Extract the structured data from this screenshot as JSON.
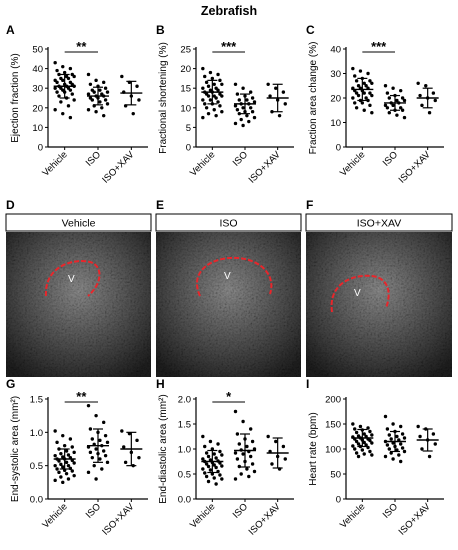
{
  "figure_title": "Zebrafish",
  "panel_letters": [
    "A",
    "B",
    "C",
    "D",
    "E",
    "F",
    "G",
    "H",
    "I"
  ],
  "ultrasound_panels": [
    {
      "letter": "D",
      "label": "Vehicle",
      "ventricle_label": "V"
    },
    {
      "letter": "E",
      "label": "ISO",
      "ventricle_label": "V"
    },
    {
      "letter": "F",
      "label": "ISO+XAV",
      "ventricle_label": "V"
    }
  ],
  "colors": {
    "axis": "#000000",
    "point": "#000000",
    "outline": "#e8262b",
    "background": "#ffffff"
  },
  "chart_data": [
    {
      "id": "A",
      "type": "scatter",
      "title": "",
      "xlabel": "",
      "ylabel": "Ejection fraction (%)",
      "ylim": [
        0,
        50
      ],
      "yticks": [
        "0",
        "10",
        "20",
        "30",
        "40",
        "50"
      ],
      "categories": [
        "Vehicle",
        "ISO",
        "ISO+XAV"
      ],
      "series": [
        {
          "values": [
            43,
            41,
            40,
            39,
            38,
            37,
            37,
            36,
            36,
            35,
            35,
            34,
            34,
            33,
            33,
            32,
            32,
            31,
            31,
            31,
            30,
            30,
            30,
            29,
            29,
            28,
            28,
            27,
            26,
            25,
            24,
            23,
            21,
            19,
            17,
            15
          ],
          "mean": 31,
          "sd": 6
        },
        {
          "values": [
            37,
            34,
            33,
            32,
            31,
            30,
            29,
            29,
            28,
            28,
            27,
            27,
            26,
            26,
            25,
            25,
            24,
            24,
            23,
            22,
            21,
            20,
            19,
            18,
            16
          ],
          "mean": 26,
          "sd": 4.5
        },
        {
          "values": [
            36,
            33,
            31,
            28,
            26,
            24,
            21,
            17
          ],
          "mean": 27.5,
          "sd": 6
        }
      ],
      "significance": {
        "between": [
          "Vehicle",
          "ISO"
        ],
        "label": "**"
      },
      "grid": false,
      "legend": "none"
    },
    {
      "id": "B",
      "type": "scatter",
      "title": "",
      "xlabel": "",
      "ylabel": "Fractional shortening (%)",
      "ylim": [
        0,
        25
      ],
      "yticks": [
        "0",
        "5",
        "10",
        "15",
        "20",
        "25"
      ],
      "categories": [
        "Vehicle",
        "ISO",
        "ISO+XAV"
      ],
      "series": [
        {
          "values": [
            20,
            19,
            18.5,
            18,
            17.5,
            17,
            16.5,
            16,
            16,
            15.5,
            15,
            15,
            14.5,
            14.5,
            14,
            14,
            13.5,
            13.5,
            13,
            13,
            13,
            12.5,
            12,
            12,
            11.5,
            11,
            11,
            10.5,
            10,
            9.5,
            9,
            8.5,
            8,
            7.5
          ],
          "mean": 14,
          "sd": 3
        },
        {
          "values": [
            16,
            15,
            14,
            13.5,
            13,
            12.5,
            12,
            12,
            11.5,
            11,
            11,
            10.5,
            10,
            10,
            9.5,
            9,
            9,
            8.5,
            8,
            7.5,
            7,
            6.5,
            6,
            5.5
          ],
          "mean": 11,
          "sd": 2.5
        },
        {
          "values": [
            16,
            15,
            14,
            13,
            12,
            11,
            9,
            8
          ],
          "mean": 12.5,
          "sd": 3.5
        }
      ],
      "significance": {
        "between": [
          "Vehicle",
          "ISO"
        ],
        "label": "***"
      },
      "grid": false,
      "legend": "none"
    },
    {
      "id": "C",
      "type": "scatter",
      "title": "",
      "xlabel": "",
      "ylabel": "Fraction area change (%)",
      "ylim": [
        0,
        40
      ],
      "yticks": [
        "0",
        "10",
        "20",
        "30",
        "40"
      ],
      "categories": [
        "Vehicle",
        "ISO",
        "ISO+XAV"
      ],
      "series": [
        {
          "values": [
            32,
            31,
            30,
            29,
            28,
            27,
            27,
            26,
            26,
            25,
            25,
            24,
            24,
            24,
            23,
            23,
            22,
            22,
            22,
            21,
            21,
            20,
            20,
            19,
            19,
            18,
            18,
            17,
            16,
            15,
            14
          ],
          "mean": 23.5,
          "sd": 4.5
        },
        {
          "values": [
            25,
            24,
            23,
            22,
            21,
            20,
            20,
            19,
            19,
            18,
            18,
            17,
            17,
            16,
            16,
            15,
            15,
            14,
            13,
            12
          ],
          "mean": 18,
          "sd": 3
        },
        {
          "values": [
            26,
            25,
            22,
            21,
            20,
            19,
            17,
            14
          ],
          "mean": 20,
          "sd": 4
        }
      ],
      "significance": {
        "between": [
          "Vehicle",
          "ISO"
        ],
        "label": "***"
      },
      "grid": false,
      "legend": "none"
    },
    {
      "id": "G",
      "type": "scatter",
      "title": "",
      "xlabel": "",
      "ylabel": "End-systolic area (mm²)",
      "ylim": [
        0,
        1.5
      ],
      "yticks": [
        "0.0",
        "0.5",
        "1.0",
        "1.5"
      ],
      "categories": [
        "Vehicle",
        "ISO",
        "ISO+XAV"
      ],
      "series": [
        {
          "values": [
            1.02,
            0.95,
            0.9,
            0.85,
            0.8,
            0.78,
            0.75,
            0.72,
            0.7,
            0.68,
            0.66,
            0.65,
            0.63,
            0.62,
            0.6,
            0.6,
            0.58,
            0.57,
            0.55,
            0.54,
            0.52,
            0.5,
            0.5,
            0.48,
            0.46,
            0.45,
            0.43,
            0.42,
            0.4,
            0.38,
            0.35,
            0.33,
            0.3,
            0.28,
            0.25
          ],
          "mean": 0.6,
          "sd": 0.15
        },
        {
          "values": [
            1.4,
            1.25,
            1.15,
            1.05,
            1.0,
            0.95,
            0.9,
            0.88,
            0.85,
            0.82,
            0.8,
            0.78,
            0.75,
            0.72,
            0.7,
            0.68,
            0.65,
            0.62,
            0.6,
            0.55,
            0.5,
            0.45,
            0.4,
            0.3
          ],
          "mean": 0.8,
          "sd": 0.25
        },
        {
          "values": [
            1.02,
            0.98,
            0.88,
            0.78,
            0.7,
            0.62,
            0.55,
            0.5
          ],
          "mean": 0.75,
          "sd": 0.25
        }
      ],
      "significance": {
        "between": [
          "Vehicle",
          "ISO"
        ],
        "label": "**"
      },
      "grid": false,
      "legend": "none"
    },
    {
      "id": "H",
      "type": "scatter",
      "title": "",
      "xlabel": "",
      "ylabel": "End-diastolic area (mm²)",
      "ylim": [
        0,
        2.0
      ],
      "yticks": [
        "0.0",
        "0.5",
        "1.0",
        "1.5",
        "2.0"
      ],
      "categories": [
        "Vehicle",
        "ISO",
        "ISO+XAV"
      ],
      "series": [
        {
          "values": [
            1.25,
            1.15,
            1.1,
            1.05,
            1.0,
            0.95,
            0.92,
            0.9,
            0.88,
            0.85,
            0.82,
            0.8,
            0.78,
            0.76,
            0.75,
            0.73,
            0.72,
            0.7,
            0.68,
            0.66,
            0.65,
            0.63,
            0.6,
            0.58,
            0.55,
            0.52,
            0.5,
            0.48,
            0.45,
            0.42,
            0.4,
            0.35,
            0.3
          ],
          "mean": 0.75,
          "sd": 0.22
        },
        {
          "values": [
            1.75,
            1.55,
            1.4,
            1.3,
            1.2,
            1.15,
            1.1,
            1.05,
            1.0,
            0.98,
            0.95,
            0.92,
            0.9,
            0.85,
            0.8,
            0.75,
            0.7,
            0.65,
            0.6,
            0.55,
            0.5,
            0.45,
            0.4
          ],
          "mean": 0.97,
          "sd": 0.33
        },
        {
          "values": [
            1.25,
            1.15,
            1.05,
            0.95,
            0.85,
            0.8,
            0.7,
            0.6
          ],
          "mean": 0.92,
          "sd": 0.3
        }
      ],
      "significance": {
        "between": [
          "Vehicle",
          "ISO"
        ],
        "label": "*"
      },
      "grid": false,
      "legend": "none"
    },
    {
      "id": "I",
      "type": "scatter",
      "title": "",
      "xlabel": "",
      "ylabel": "Heart rate (bpm)",
      "ylim": [
        0,
        200
      ],
      "yticks": [
        "0",
        "50",
        "100",
        "150",
        "200"
      ],
      "categories": [
        "Vehicle",
        "ISO",
        "ISO+XAV"
      ],
      "series": [
        {
          "values": [
            150,
            145,
            142,
            140,
            138,
            135,
            133,
            130,
            128,
            126,
            125,
            124,
            122,
            120,
            120,
            118,
            117,
            115,
            113,
            112,
            110,
            108,
            106,
            105,
            103,
            100,
            98,
            95,
            92,
            90,
            88,
            85
          ],
          "mean": 122,
          "sd": 17
        },
        {
          "values": [
            165,
            150,
            145,
            140,
            135,
            130,
            128,
            125,
            122,
            120,
            118,
            115,
            112,
            110,
            108,
            105,
            102,
            100,
            98,
            95,
            92,
            88,
            85,
            80,
            75
          ],
          "mean": 115,
          "sd": 20
        },
        {
          "values": [
            145,
            140,
            130,
            125,
            118,
            110,
            100,
            85
          ],
          "mean": 118,
          "sd": 22
        }
      ],
      "significance": null,
      "grid": false,
      "legend": "none"
    }
  ]
}
